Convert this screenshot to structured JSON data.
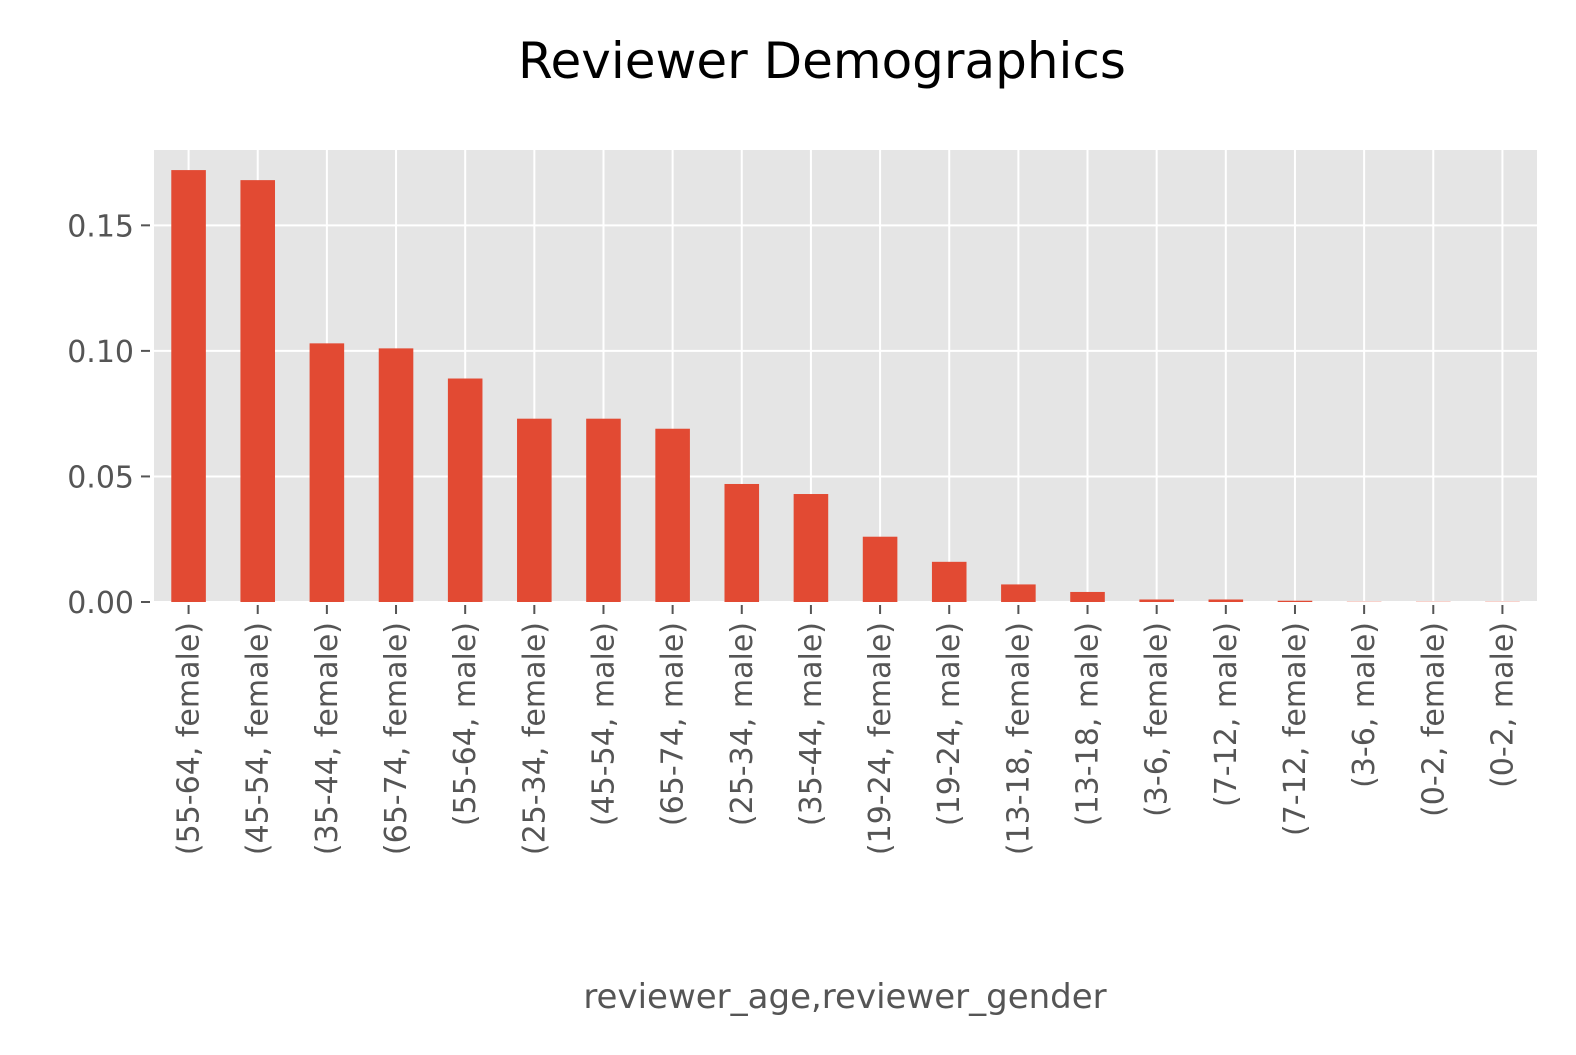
{
  "chart_data": {
    "type": "bar",
    "title": "Reviewer Demographics",
    "xlabel": "reviewer_age,reviewer_gender",
    "ylabel": "",
    "ylim": [
      0,
      0.18
    ],
    "yticks": [
      "0.00",
      "0.05",
      "0.10",
      "0.15"
    ],
    "grid": true,
    "bar_color": "#e24a33",
    "background_color": "#e5e5e5",
    "categories": [
      "(55-64, female)",
      "(45-54, female)",
      "(35-44, female)",
      "(65-74, female)",
      "(55-64, male)",
      "(25-34, female)",
      "(45-54, male)",
      "(65-74, male)",
      "(25-34, male)",
      "(35-44, male)",
      "(19-24, female)",
      "(19-24, male)",
      "(13-18, female)",
      "(13-18, male)",
      "(3-6, female)",
      "(7-12, male)",
      "(7-12, female)",
      "(3-6, male)",
      "(0-2, female)",
      "(0-2, male)"
    ],
    "values": [
      0.172,
      0.168,
      0.103,
      0.101,
      0.089,
      0.073,
      0.073,
      0.069,
      0.047,
      0.043,
      0.026,
      0.016,
      0.007,
      0.004,
      0.001,
      0.001,
      0.0005,
      0.0001,
      0.0001,
      0.0001
    ]
  }
}
